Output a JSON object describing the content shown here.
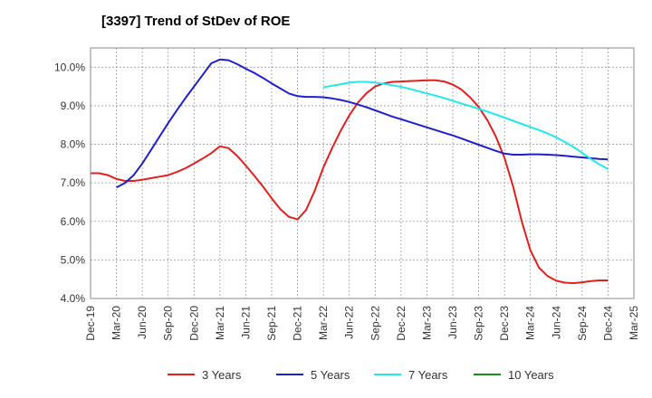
{
  "chart_data": {
    "type": "line",
    "title": "[3397]  Trend of StDev of ROE",
    "xlabel": "",
    "ylabel": "",
    "ylim": [
      4.0,
      10.5
    ],
    "y_ticks": [
      "4.0%",
      "5.0%",
      "6.0%",
      "7.0%",
      "8.0%",
      "9.0%",
      "10.0%"
    ],
    "y_tick_values": [
      4.0,
      5.0,
      6.0,
      7.0,
      8.0,
      9.0,
      10.0
    ],
    "x_ticks": [
      "Dec-19",
      "Mar-20",
      "Jun-20",
      "Sep-20",
      "Dec-20",
      "Mar-21",
      "Jun-21",
      "Sep-21",
      "Dec-21",
      "Mar-22",
      "Jun-22",
      "Sep-22",
      "Dec-22",
      "Mar-23",
      "Jun-23",
      "Sep-23",
      "Dec-23",
      "Mar-24",
      "Jun-24",
      "Sep-24",
      "Dec-24",
      "Mar-25"
    ],
    "grid": true,
    "legend_position": "bottom",
    "series": [
      {
        "name": "3 Years",
        "color": "#e02020",
        "x": [
          "Dec-19",
          "Jan-20",
          "Feb-20",
          "Mar-20",
          "Apr-20",
          "May-20",
          "Jun-20",
          "Jul-20",
          "Aug-20",
          "Sep-20",
          "Oct-20",
          "Nov-20",
          "Dec-20",
          "Jan-21",
          "Feb-21",
          "Mar-21",
          "Apr-21",
          "May-21",
          "Jun-21",
          "Jul-21",
          "Aug-21",
          "Sep-21",
          "Oct-21",
          "Nov-21",
          "Dec-21",
          "Jan-22",
          "Feb-22",
          "Mar-22",
          "Apr-22",
          "May-22",
          "Jun-22",
          "Jul-22",
          "Aug-22",
          "Sep-22",
          "Oct-22",
          "Nov-22",
          "Dec-22",
          "Jan-23",
          "Feb-23",
          "Mar-23",
          "Apr-23",
          "May-23",
          "Jun-23",
          "Jul-23",
          "Aug-23",
          "Sep-23",
          "Oct-23",
          "Nov-23",
          "Dec-23",
          "Jan-24",
          "Feb-24",
          "Mar-24",
          "Apr-24",
          "May-24",
          "Jun-24",
          "Jul-24",
          "Aug-24",
          "Sep-24",
          "Oct-24",
          "Nov-24",
          "Dec-24"
        ],
        "values": [
          7.25,
          7.25,
          7.2,
          7.1,
          7.05,
          7.05,
          7.08,
          7.12,
          7.16,
          7.2,
          7.28,
          7.38,
          7.5,
          7.63,
          7.77,
          7.95,
          7.9,
          7.7,
          7.45,
          7.18,
          6.9,
          6.6,
          6.32,
          6.12,
          6.05,
          6.3,
          6.8,
          7.4,
          7.9,
          8.35,
          8.75,
          9.08,
          9.33,
          9.5,
          9.58,
          9.62,
          9.63,
          9.64,
          9.65,
          9.66,
          9.66,
          9.63,
          9.55,
          9.42,
          9.22,
          8.97,
          8.63,
          8.2,
          7.65,
          6.9,
          6.0,
          5.25,
          4.8,
          4.58,
          4.46,
          4.41,
          4.4,
          4.42,
          4.45,
          4.47,
          4.47
        ]
      },
      {
        "name": "5 Years",
        "color": "#1f1fcc",
        "x": [
          "Mar-20",
          "Apr-20",
          "May-20",
          "Jun-20",
          "Jul-20",
          "Aug-20",
          "Sep-20",
          "Oct-20",
          "Nov-20",
          "Dec-20",
          "Jan-21",
          "Feb-21",
          "Mar-21",
          "Apr-21",
          "May-21",
          "Jun-21",
          "Jul-21",
          "Aug-21",
          "Sep-21",
          "Oct-21",
          "Nov-21",
          "Dec-21",
          "Jan-22",
          "Feb-22",
          "Mar-22",
          "Apr-22",
          "May-22",
          "Jun-22",
          "Jul-22",
          "Aug-22",
          "Sep-22",
          "Oct-22",
          "Nov-22",
          "Dec-22",
          "Jan-23",
          "Feb-23",
          "Mar-23",
          "Apr-23",
          "May-23",
          "Jun-23",
          "Jul-23",
          "Aug-23",
          "Sep-23",
          "Oct-23",
          "Nov-23",
          "Dec-23",
          "Jan-24",
          "Feb-24",
          "Mar-24",
          "Apr-24",
          "May-24",
          "Jun-24",
          "Jul-24",
          "Aug-24",
          "Sep-24",
          "Oct-24",
          "Nov-24",
          "Dec-24"
        ],
        "values": [
          6.88,
          7.0,
          7.2,
          7.5,
          7.85,
          8.2,
          8.55,
          8.88,
          9.2,
          9.5,
          9.8,
          10.1,
          10.2,
          10.18,
          10.08,
          9.96,
          9.85,
          9.72,
          9.58,
          9.45,
          9.32,
          9.25,
          9.23,
          9.23,
          9.22,
          9.19,
          9.15,
          9.1,
          9.03,
          8.96,
          8.88,
          8.8,
          8.72,
          8.65,
          8.58,
          8.51,
          8.44,
          8.37,
          8.3,
          8.23,
          8.15,
          8.07,
          7.99,
          7.91,
          7.83,
          7.76,
          7.73,
          7.73,
          7.74,
          7.74,
          7.73,
          7.72,
          7.7,
          7.68,
          7.66,
          7.64,
          7.62,
          7.61
        ]
      },
      {
        "name": "7 Years",
        "color": "#22e8e8",
        "x": [
          "Mar-22",
          "Apr-22",
          "May-22",
          "Jun-22",
          "Jul-22",
          "Aug-22",
          "Sep-22",
          "Oct-22",
          "Nov-22",
          "Dec-22",
          "Jan-23",
          "Feb-23",
          "Mar-23",
          "Apr-23",
          "May-23",
          "Jun-23",
          "Jul-23",
          "Aug-23",
          "Sep-23",
          "Oct-23",
          "Nov-23",
          "Dec-23",
          "Jan-24",
          "Feb-24",
          "Mar-24",
          "Apr-24",
          "May-24",
          "Jun-24",
          "Jul-24",
          "Aug-24",
          "Sep-24",
          "Oct-24",
          "Nov-24",
          "Dec-24"
        ],
        "values": [
          9.48,
          9.52,
          9.56,
          9.6,
          9.62,
          9.62,
          9.6,
          9.57,
          9.53,
          9.49,
          9.44,
          9.38,
          9.32,
          9.26,
          9.2,
          9.13,
          9.06,
          8.99,
          8.92,
          8.85,
          8.77,
          8.69,
          8.61,
          8.53,
          8.45,
          8.37,
          8.28,
          8.18,
          8.06,
          7.93,
          7.78,
          7.62,
          7.48,
          7.36
        ]
      },
      {
        "name": "10 Years",
        "color": "#1a8c1a",
        "x": [],
        "values": []
      }
    ]
  }
}
